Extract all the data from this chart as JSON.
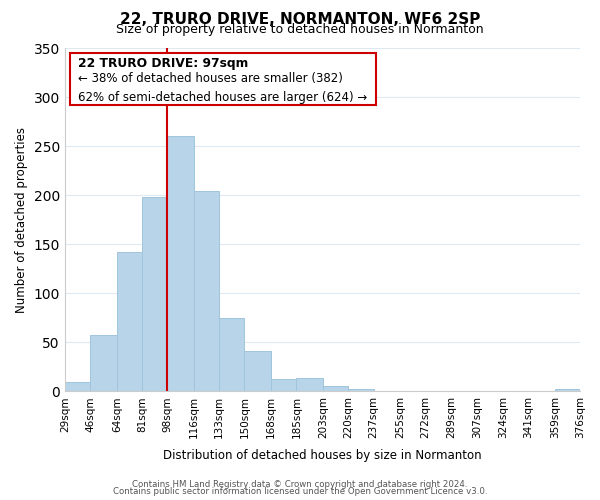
{
  "title": "22, TRURO DRIVE, NORMANTON, WF6 2SP",
  "subtitle": "Size of property relative to detached houses in Normanton",
  "xlabel": "Distribution of detached houses by size in Normanton",
  "ylabel": "Number of detached properties",
  "bar_color": "#b8d4e8",
  "bar_edge_color": "#a0c4dc",
  "bin_edges": [
    29,
    46,
    64,
    81,
    98,
    116,
    133,
    150,
    168,
    185,
    203,
    220,
    237,
    255,
    272,
    289,
    307,
    324,
    341,
    359,
    376
  ],
  "bin_labels": [
    "29sqm",
    "46sqm",
    "64sqm",
    "81sqm",
    "98sqm",
    "116sqm",
    "133sqm",
    "150sqm",
    "168sqm",
    "185sqm",
    "203sqm",
    "220sqm",
    "237sqm",
    "255sqm",
    "272sqm",
    "289sqm",
    "307sqm",
    "324sqm",
    "341sqm",
    "359sqm",
    "376sqm"
  ],
  "counts": [
    10,
    57,
    142,
    198,
    260,
    204,
    75,
    41,
    13,
    14,
    6,
    2,
    0,
    0,
    0,
    0,
    0,
    0,
    0,
    2
  ],
  "vline_x": 98,
  "vline_color": "#cc0000",
  "ylim": [
    0,
    350
  ],
  "yticks": [
    0,
    50,
    100,
    150,
    200,
    250,
    300,
    350
  ],
  "annotation_title": "22 TRURO DRIVE: 97sqm",
  "annotation_line1": "← 38% of detached houses are smaller (382)",
  "annotation_line2": "62% of semi-detached houses are larger (624) →",
  "annotation_box_color": "#ffffff",
  "annotation_box_edge": "#cc0000",
  "footer1": "Contains HM Land Registry data © Crown copyright and database right 2024.",
  "footer2": "Contains public sector information licensed under the Open Government Licence v3.0.",
  "background_color": "#ffffff",
  "grid_color": "#ddeaf4"
}
